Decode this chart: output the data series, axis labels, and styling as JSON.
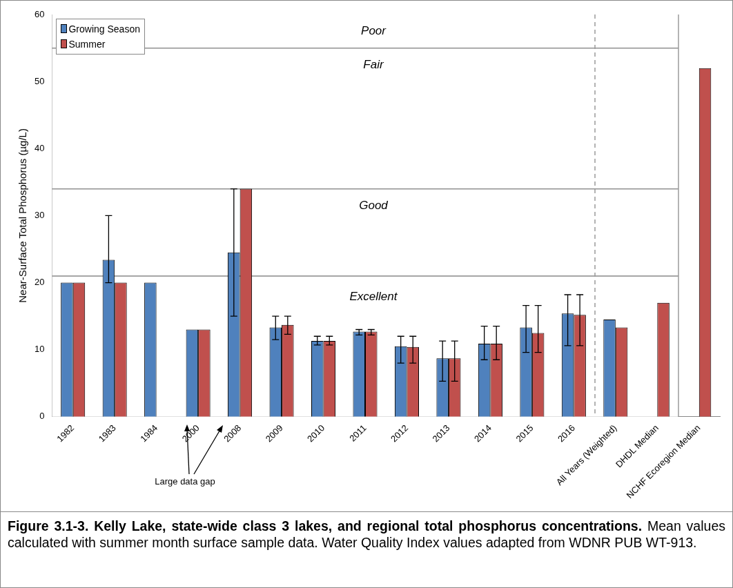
{
  "chart_data": {
    "type": "bar",
    "title": "Figure 3.1-3.  Kelly Lake, state-wide class 3 lakes, and regional total phosphorus concentrations.",
    "subtitle": "Mean values calculated with summer month surface sample data. Water Quality Index values adapted from WDNR PUB WT-913.",
    "ylabel": "Near-Surface Total Phosphorus (µg/L)",
    "categories": [
      "1982",
      "1983",
      "1984",
      "2000",
      "2008",
      "2009",
      "2010",
      "2011",
      "2012",
      "2013",
      "2014",
      "2015",
      "2016",
      "All Years (Weighted)",
      "DHDL Median",
      "NCHF Ecoregion Median"
    ],
    "series": [
      {
        "name": "Growing Season",
        "color": "#4f81bd",
        "values": [
          20,
          23.4,
          20,
          13,
          24.5,
          13.3,
          11.3,
          12.7,
          10.5,
          8.7,
          10.9,
          13.3,
          15.4,
          14.5,
          null,
          null
        ],
        "errors": [
          null,
          [
            20,
            30
          ],
          null,
          null,
          [
            15,
            34
          ],
          [
            11.5,
            15
          ],
          [
            10.7,
            12
          ],
          [
            12.2,
            13
          ],
          [
            8,
            12
          ],
          [
            5.3,
            11.3
          ],
          [
            8.5,
            13.5
          ],
          [
            9.6,
            16.6
          ],
          [
            10.6,
            18.2
          ],
          null,
          null,
          null
        ]
      },
      {
        "name": "Summer",
        "color": "#c0504d",
        "values": [
          20,
          20,
          null,
          13,
          34,
          13.7,
          11.3,
          12.7,
          10.4,
          8.7,
          10.9,
          12.5,
          15.2,
          13.3,
          17,
          52
        ],
        "errors": [
          null,
          null,
          null,
          null,
          null,
          [
            12.3,
            15
          ],
          [
            10.7,
            12
          ],
          [
            12.2,
            13
          ],
          [
            8,
            12
          ],
          [
            5.3,
            11.3
          ],
          [
            8.5,
            13.5
          ],
          [
            9.6,
            16.6
          ],
          [
            10.6,
            18.2
          ],
          null,
          null,
          null
        ]
      }
    ],
    "ylim": [
      0,
      60
    ],
    "yticks": [
      0,
      10,
      20,
      30,
      40,
      50,
      60
    ],
    "grid": false,
    "legend": "top left",
    "bands": [
      {
        "axis": "y",
        "from": 0,
        "to": 21,
        "label": "Excellent",
        "color": "#ffffff"
      },
      {
        "axis": "y",
        "from": 21,
        "to": 34,
        "label": "Good",
        "color": "#ffffff"
      },
      {
        "axis": "y",
        "from": 34,
        "to": 55,
        "label": "Fair",
        "color": "#ffffff"
      },
      {
        "axis": "y",
        "from": 55,
        "to": 60,
        "label": "Poor",
        "color": "#ffffff"
      }
    ],
    "annotations": [
      "Large data gap"
    ]
  }
}
